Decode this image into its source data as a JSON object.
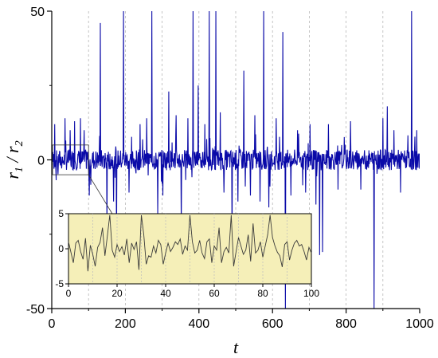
{
  "chart_data": [
    {
      "type": "line",
      "xlabel": "t",
      "ylabel_parts": [
        "r",
        "1",
        " / r",
        "2"
      ],
      "xlim": [
        0,
        1000
      ],
      "ylim": [
        -50,
        50
      ],
      "xticks": [
        0,
        200,
        400,
        600,
        800,
        1000
      ],
      "yticks": [
        -50,
        0,
        50
      ],
      "xtick_labels": [
        "0",
        "200",
        "400",
        "600",
        "800",
        "1000"
      ],
      "ytick_labels": [
        "-50",
        "0",
        "50"
      ],
      "grid": "vertical dashed",
      "line_color": "#0a0aa8",
      "spikes": [
        {
          "x": 8,
          "y": 12
        },
        {
          "x": 36,
          "y": 14
        },
        {
          "x": 50,
          "y": 10
        },
        {
          "x": 62,
          "y": 13
        },
        {
          "x": 78,
          "y": 14
        },
        {
          "x": 88,
          "y": 10
        },
        {
          "x": 102,
          "y": -12
        },
        {
          "x": 132,
          "y": 46
        },
        {
          "x": 150,
          "y": -22
        },
        {
          "x": 168,
          "y": -14
        },
        {
          "x": 176,
          "y": -27
        },
        {
          "x": 195,
          "y": 50
        },
        {
          "x": 210,
          "y": -11
        },
        {
          "x": 240,
          "y": 12
        },
        {
          "x": 258,
          "y": 14
        },
        {
          "x": 272,
          "y": 50
        },
        {
          "x": 288,
          "y": -18
        },
        {
          "x": 302,
          "y": -12
        },
        {
          "x": 318,
          "y": 23
        },
        {
          "x": 338,
          "y": 15
        },
        {
          "x": 352,
          "y": -22
        },
        {
          "x": 370,
          "y": 14
        },
        {
          "x": 384,
          "y": 50
        },
        {
          "x": 398,
          "y": 25
        },
        {
          "x": 416,
          "y": 12
        },
        {
          "x": 428,
          "y": 50
        },
        {
          "x": 446,
          "y": 50
        },
        {
          "x": 458,
          "y": 16
        },
        {
          "x": 468,
          "y": -11
        },
        {
          "x": 490,
          "y": -26
        },
        {
          "x": 506,
          "y": -14
        },
        {
          "x": 522,
          "y": 30
        },
        {
          "x": 540,
          "y": -12
        },
        {
          "x": 552,
          "y": 15
        },
        {
          "x": 566,
          "y": -14
        },
        {
          "x": 576,
          "y": 50
        },
        {
          "x": 590,
          "y": -16
        },
        {
          "x": 610,
          "y": 14
        },
        {
          "x": 628,
          "y": 43
        },
        {
          "x": 635,
          "y": -50
        },
        {
          "x": 650,
          "y": -12
        },
        {
          "x": 668,
          "y": 10
        },
        {
          "x": 690,
          "y": -11
        },
        {
          "x": 702,
          "y": 12
        },
        {
          "x": 718,
          "y": -15
        },
        {
          "x": 728,
          "y": -32
        },
        {
          "x": 736,
          "y": -31
        },
        {
          "x": 752,
          "y": 12
        },
        {
          "x": 778,
          "y": -10
        },
        {
          "x": 812,
          "y": 13
        },
        {
          "x": 840,
          "y": -10
        },
        {
          "x": 876,
          "y": -50
        },
        {
          "x": 900,
          "y": 14
        },
        {
          "x": 912,
          "y": 18
        },
        {
          "x": 930,
          "y": 10
        },
        {
          "x": 948,
          "y": -11
        },
        {
          "x": 978,
          "y": 50
        },
        {
          "x": 992,
          "y": 10
        }
      ],
      "noise_amplitude": 3.5
    },
    {
      "type": "line",
      "role": "inset",
      "xlim": [
        0,
        100
      ],
      "ylim": [
        -5,
        5
      ],
      "xticks": [
        0,
        20,
        40,
        60,
        80,
        100
      ],
      "yticks": [
        -5,
        0,
        5
      ],
      "xtick_labels": [
        "0",
        "20",
        "40",
        "60",
        "80",
        "100"
      ],
      "ytick_labels": [
        "-5",
        "0",
        "5"
      ],
      "background": "#f5efb8",
      "line_color": "#3a3a3a",
      "x": [
        0,
        1,
        2,
        3,
        4,
        5,
        6,
        7,
        8,
        9,
        10,
        11,
        12,
        13,
        14,
        15,
        16,
        17,
        18,
        19,
        20,
        21,
        22,
        23,
        24,
        25,
        26,
        27,
        28,
        29,
        30,
        31,
        32,
        33,
        34,
        35,
        36,
        37,
        38,
        39,
        40,
        41,
        42,
        43,
        44,
        45,
        46,
        47,
        48,
        49,
        50,
        51,
        52,
        53,
        54,
        55,
        56,
        57,
        58,
        59,
        60,
        61,
        62,
        63,
        64,
        65,
        66,
        67,
        68,
        69,
        70,
        71,
        72,
        73,
        74,
        75,
        76,
        77,
        78,
        79,
        80,
        81,
        82,
        83,
        84,
        85,
        86,
        87,
        88,
        89,
        90,
        91,
        92,
        93,
        94,
        95,
        96,
        97,
        98,
        99,
        100
      ],
      "y": [
        1.0,
        -0.5,
        -2.0,
        0.8,
        1.2,
        -0.4,
        -1.5,
        1.5,
        -3.2,
        0.5,
        -0.8,
        -2.5,
        0.2,
        0.9,
        3.0,
        -1.0,
        1.8,
        4.8,
        -0.2,
        -1.2,
        0.6,
        -0.4,
        0.3,
        -0.9,
        1.4,
        -2.0,
        0.8,
        -0.1,
        1.0,
        -3.0,
        4.8,
        2.0,
        -2.2,
        -1.0,
        -1.2,
        0.4,
        -0.6,
        1.2,
        0.6,
        -2.2,
        -0.6,
        0.8,
        -0.4,
        0.2,
        1.0,
        0.6,
        1.4,
        -0.8,
        0.4,
        -0.2,
        4.8,
        1.0,
        -0.6,
        -0.2,
        1.2,
        -0.6,
        -1.4,
        1.0,
        1.4,
        -2.0,
        0.4,
        -0.2,
        3.0,
        -2.0,
        -0.4,
        0.2,
        -0.6,
        4.8,
        -2.5,
        -0.4,
        1.6,
        0.4,
        -0.8,
        -0.2,
        2.0,
        -1.8,
        3.6,
        -0.6,
        -0.2,
        1.0,
        -1.2,
        0.4,
        2.0,
        4.8,
        1.6,
        0.4,
        -0.5,
        -1.0,
        -2.6,
        0.6,
        1.0,
        -1.6,
        -0.2,
        0.8,
        1.2,
        0.4,
        0.6,
        -0.4,
        -1.6,
        0.2,
        -0.6
      ]
    }
  ]
}
